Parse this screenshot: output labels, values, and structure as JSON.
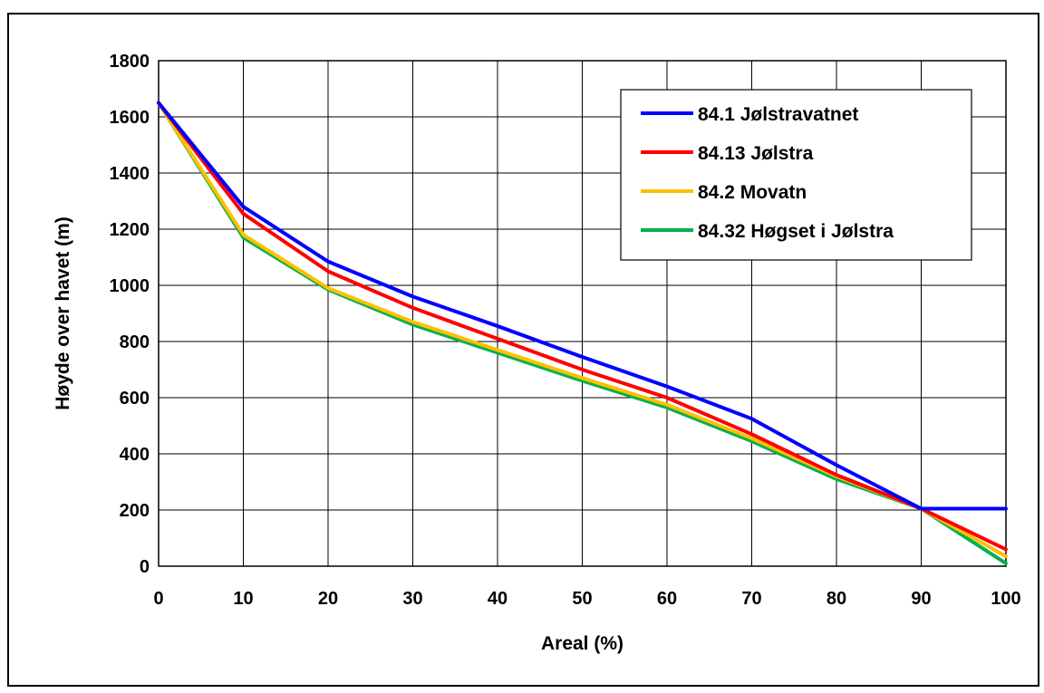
{
  "chart_data": {
    "type": "line",
    "xlabel": "Areal (%)",
    "ylabel": "Høyde over havet (m)",
    "xlim": [
      0,
      100
    ],
    "ylim": [
      0,
      1800
    ],
    "xticks": [
      0,
      10,
      20,
      30,
      40,
      50,
      60,
      70,
      80,
      90,
      100
    ],
    "yticks": [
      0,
      200,
      400,
      600,
      800,
      1000,
      1200,
      1400,
      1600,
      1800
    ],
    "grid": true,
    "legend_position": "top-right",
    "x": [
      0,
      10,
      20,
      30,
      40,
      50,
      60,
      70,
      80,
      90,
      100
    ],
    "series": [
      {
        "name": "84.1 Jølstravatnet",
        "color": "#0000ff",
        "values": [
          1650,
          1280,
          1085,
          960,
          855,
          745,
          640,
          525,
          360,
          205,
          205
        ]
      },
      {
        "name": "84.13 Jølstra",
        "color": "#ff0000",
        "values": [
          1650,
          1255,
          1050,
          920,
          810,
          700,
          600,
          470,
          325,
          205,
          60
        ]
      },
      {
        "name": "84.2 Movatn",
        "color": "#ffc000",
        "values": [
          1650,
          1180,
          990,
          870,
          770,
          670,
          575,
          455,
          320,
          205,
          35
        ]
      },
      {
        "name": "84.32 Høgset i Jølstra",
        "color": "#00b050",
        "values": [
          1650,
          1170,
          985,
          860,
          760,
          660,
          565,
          445,
          310,
          205,
          10
        ]
      }
    ]
  }
}
